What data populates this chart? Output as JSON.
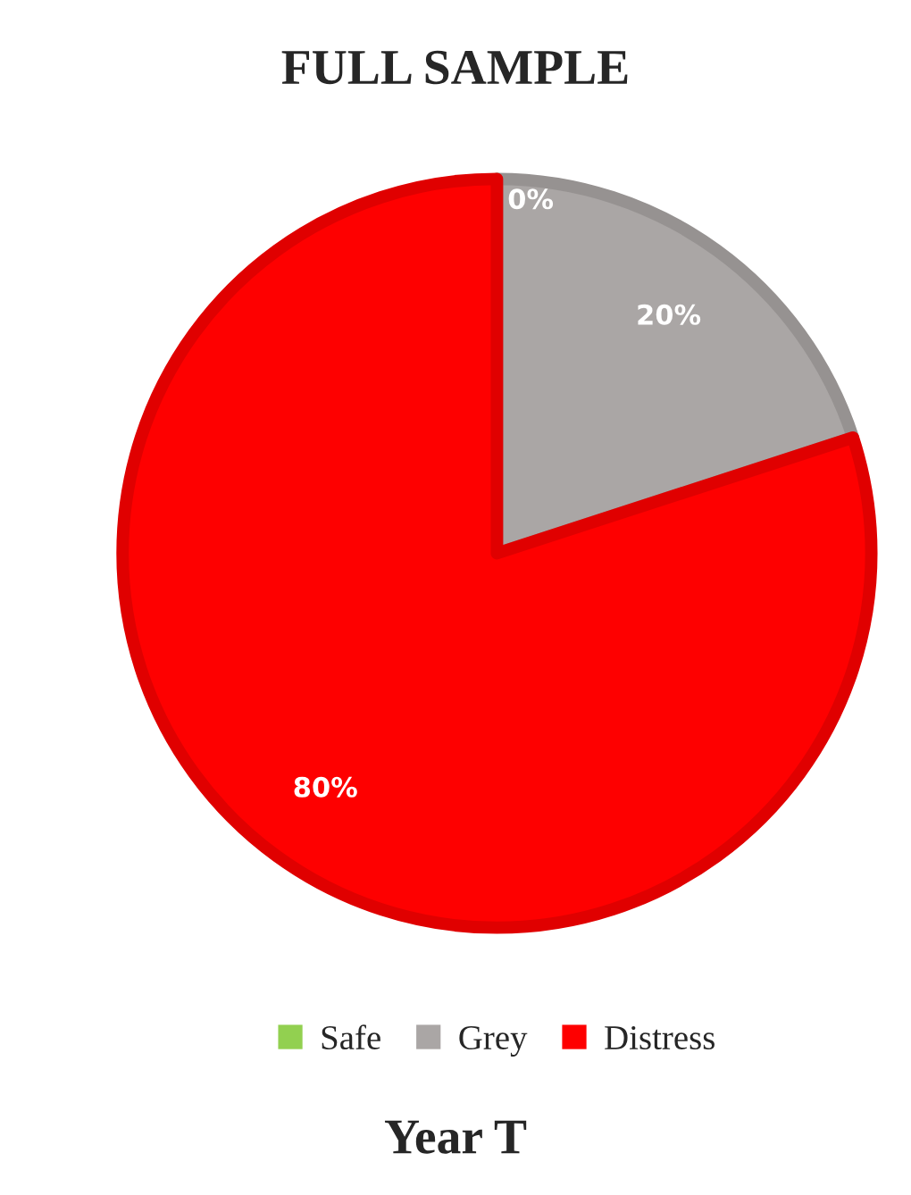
{
  "chart_data": {
    "type": "pie",
    "title": "FULL SAMPLE",
    "categories": [
      "Safe",
      "Grey",
      "Distress"
    ],
    "values": [
      0,
      20,
      80
    ],
    "colors": [
      "#92d050",
      "#aaa6a5",
      "#fe0000"
    ],
    "value_labels": [
      "0%",
      "20%",
      "80%"
    ],
    "legend": "bottom",
    "annotations": [
      "Year T"
    ]
  }
}
